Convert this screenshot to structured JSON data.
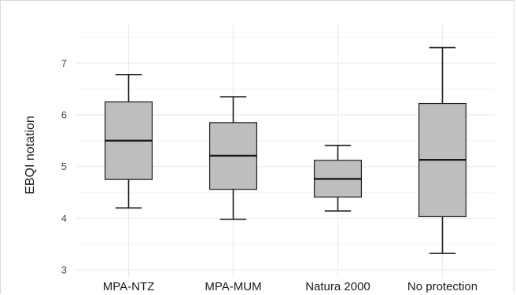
{
  "chart_data": {
    "type": "box",
    "ylabel": "EBQI notation",
    "xlabel": "",
    "ylim": [
      2.85,
      7.75
    ],
    "yticks": [
      3,
      4,
      5,
      6,
      7
    ],
    "grid": true,
    "colors": {
      "box_fill": "#bebebe",
      "stroke": "#1a1a1a",
      "grid_major": "#ebebeb",
      "grid_minor": "#f4f4f4"
    },
    "categories": [
      "MPA-NTZ",
      "MPA-MUM",
      "Natura 2000",
      "No protection"
    ],
    "boxes": [
      {
        "category": "MPA-NTZ",
        "whisker_low": 4.2,
        "q1": 4.75,
        "median": 5.5,
        "q3": 6.25,
        "whisker_high": 6.78
      },
      {
        "category": "MPA-MUM",
        "whisker_low": 3.98,
        "q1": 4.56,
        "median": 5.21,
        "q3": 5.85,
        "whisker_high": 6.35
      },
      {
        "category": "Natura 2000",
        "whisker_low": 4.14,
        "q1": 4.41,
        "median": 4.76,
        "q3": 5.12,
        "whisker_high": 5.41
      },
      {
        "category": "No protection",
        "whisker_low": 3.32,
        "q1": 4.03,
        "median": 5.13,
        "q3": 6.22,
        "whisker_high": 7.3
      }
    ]
  }
}
